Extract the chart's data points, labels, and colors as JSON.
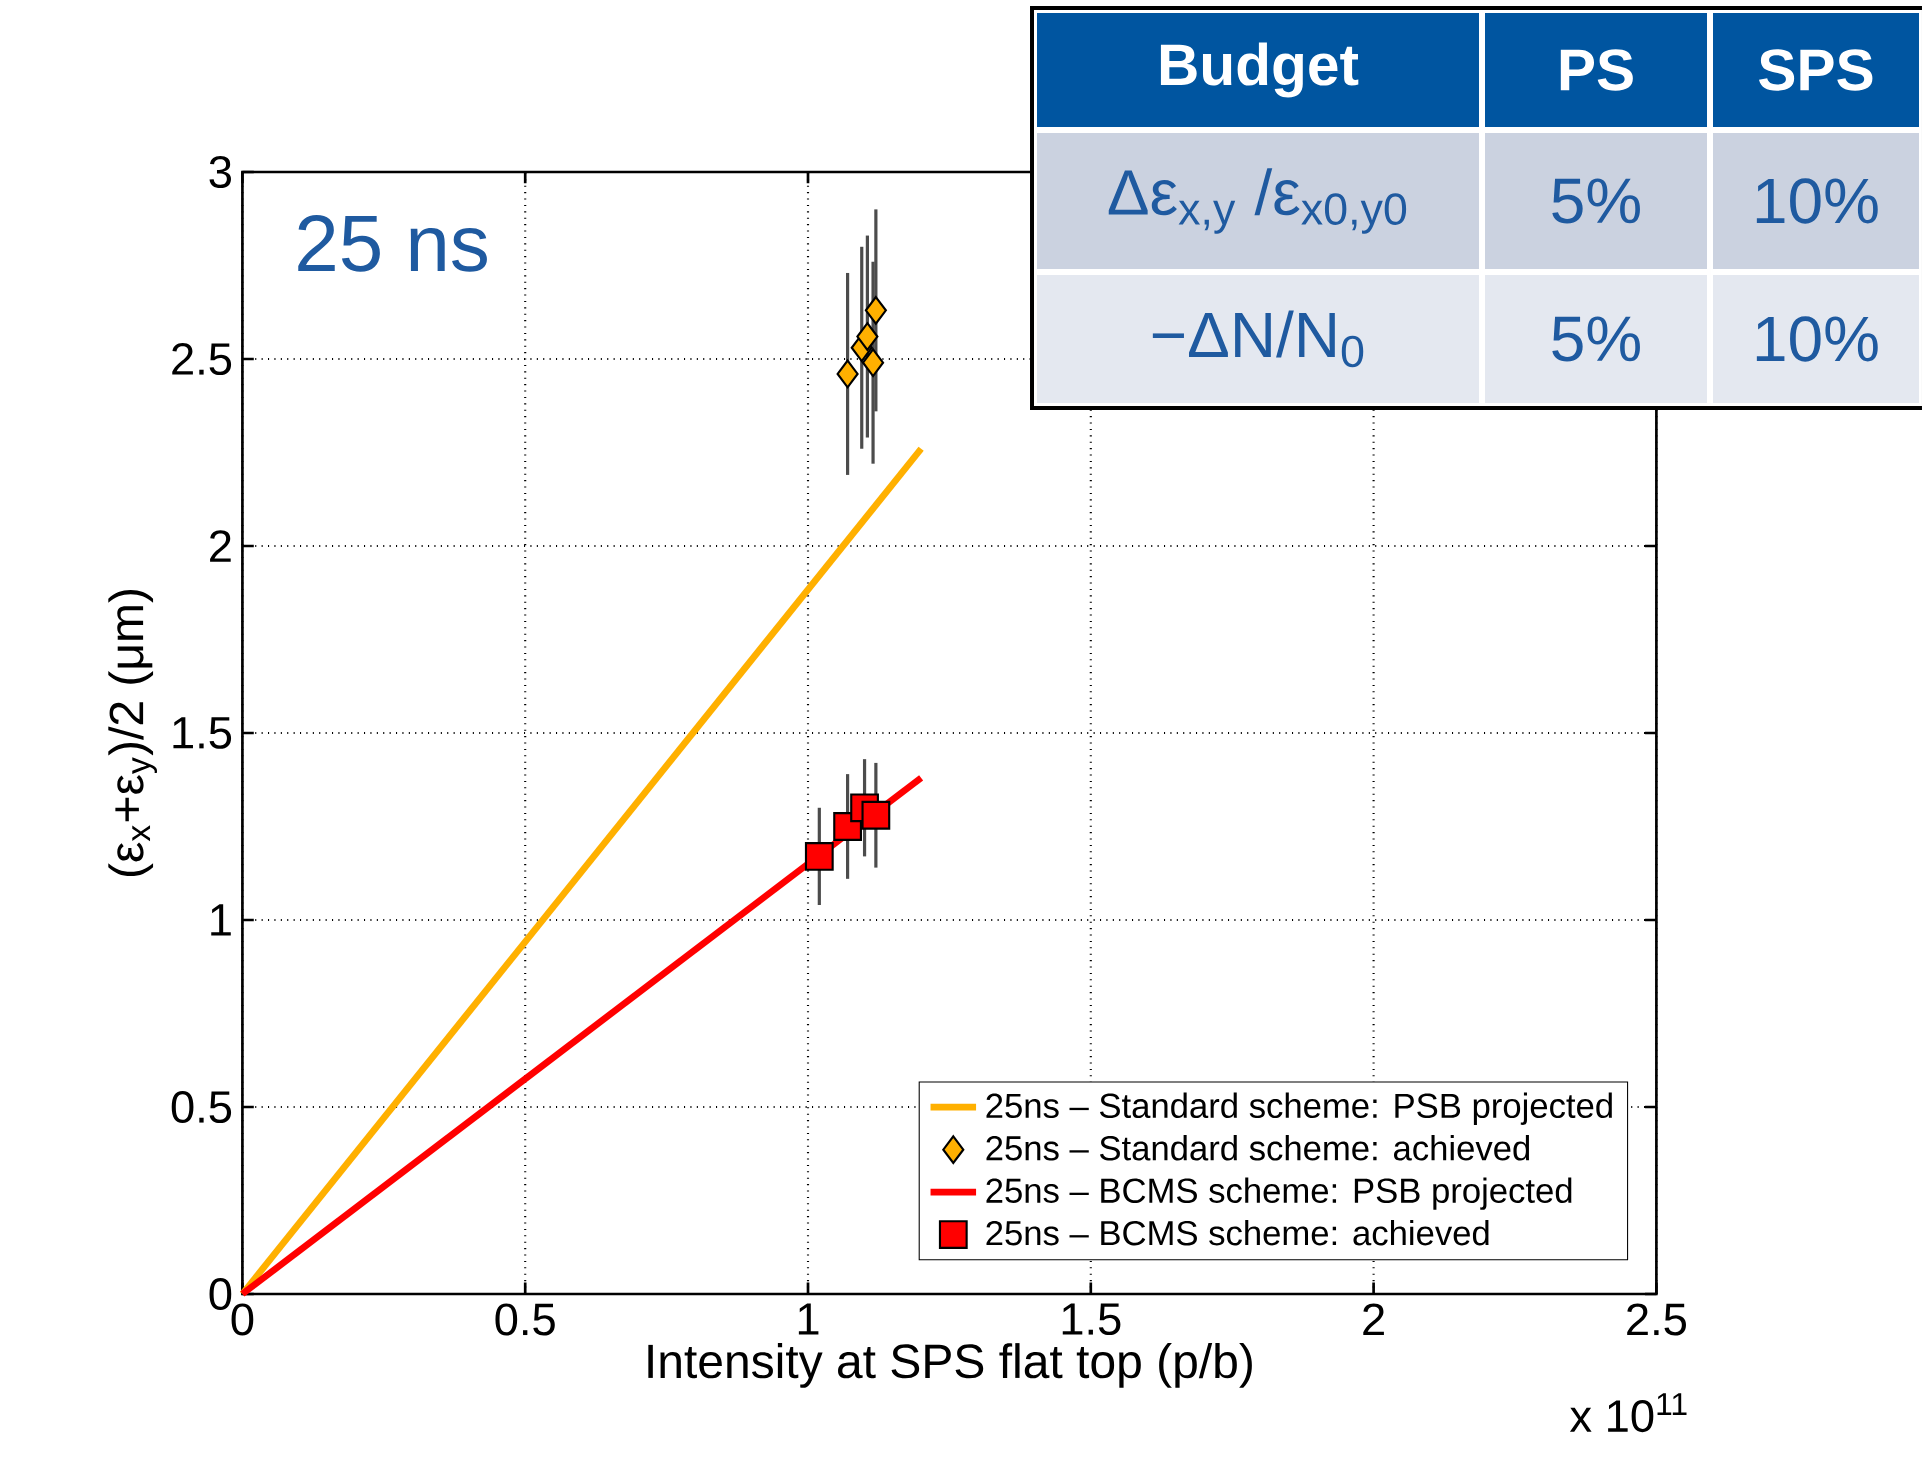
{
  "chart_data": {
    "type": "line",
    "xlabel": "Intensity at SPS flat top (p/b)",
    "ylabel": "(ε$_{x}$+ε$_{y}$)/2 (μm)",
    "xlim": [
      0,
      2.5
    ],
    "xticks": [
      0,
      0.5,
      1,
      1.5,
      2,
      2.5
    ],
    "ylim": [
      0,
      3
    ],
    "yticks": [
      0,
      0.5,
      1,
      1.5,
      2,
      2.5,
      3
    ],
    "grid": true,
    "legend": "bottom right",
    "series": [
      {
        "name": "25ns – Standard scheme: PSB projected",
        "color": "#ffb000",
        "marker": "none",
        "x": [
          0,
          1.2
        ],
        "values": [
          0,
          2.26
        ]
      },
      {
        "name": "25ns – Standard scheme: achieved",
        "type": "scatter",
        "color": "#ffb000",
        "marker": "diamond",
        "x": [
          1.07,
          1.095,
          1.105,
          1.12,
          1.115
        ],
        "values": [
          2.46,
          2.53,
          2.56,
          2.63,
          2.49
        ],
        "errors": [
          0.27,
          0.27,
          0.27,
          0.27,
          0.27
        ]
      },
      {
        "name": "25ns – BCMS scheme: PSB projected",
        "color": "#ff0000",
        "marker": "none",
        "x": [
          0,
          1.2
        ],
        "values": [
          0,
          1.38
        ]
      },
      {
        "name": "25ns – BCMS scheme: achieved",
        "type": "scatter",
        "color": "#ff0000",
        "marker": "square",
        "x": [
          1.02,
          1.07,
          1.1,
          1.12
        ],
        "values": [
          1.17,
          1.25,
          1.3,
          1.28
        ],
        "errors": [
          0.13,
          0.14,
          0.13,
          0.14
        ]
      }
    ],
    "annotations": [
      "25 ns",
      "x 10$^{11}$",
      "Budget",
      "PS",
      "SPS",
      "Δε$_{x,y}$ /ε$_{x0,y0}$",
      "5%",
      "10%",
      "−ΔN/N$_{0}$",
      "5%",
      "10%"
    ]
  }
}
